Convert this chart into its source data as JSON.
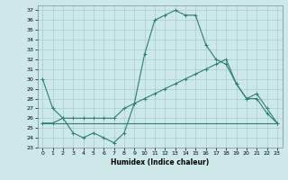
{
  "xlabel": "Humidex (Indice chaleur)",
  "bg_color": "#cce8e8",
  "grid_color": "#aacccc",
  "line_color": "#2e7d6e",
  "xlim": [
    -0.5,
    23.5
  ],
  "ylim": [
    23,
    37.5
  ],
  "xticks": [
    0,
    1,
    2,
    3,
    4,
    5,
    6,
    7,
    8,
    9,
    10,
    11,
    12,
    13,
    14,
    15,
    16,
    17,
    18,
    19,
    20,
    21,
    22,
    23
  ],
  "yticks": [
    23,
    24,
    25,
    26,
    27,
    28,
    29,
    30,
    31,
    32,
    33,
    34,
    35,
    36,
    37
  ],
  "line1_x": [
    0,
    1,
    2,
    3,
    4,
    5,
    6,
    7,
    8,
    9,
    10,
    11,
    12,
    13,
    14,
    15,
    16,
    17,
    18,
    19,
    20,
    21,
    22,
    23
  ],
  "line1_y": [
    30,
    27,
    26,
    24.5,
    24,
    24.5,
    24,
    23.5,
    24.5,
    27.5,
    32.5,
    36,
    36.5,
    37,
    36.5,
    36.5,
    33.5,
    32,
    31.5,
    29.5,
    28,
    28.5,
    27,
    25.5
  ],
  "line2_x": [
    0,
    1,
    2,
    3,
    4,
    5,
    6,
    7,
    8,
    9,
    10,
    11,
    12,
    13,
    14,
    15,
    16,
    17,
    18,
    19,
    20,
    21,
    22,
    23
  ],
  "line2_y": [
    25.5,
    25.5,
    26,
    26,
    26,
    26,
    26,
    26,
    27,
    27.5,
    28,
    28.5,
    29,
    29.5,
    30,
    30.5,
    31,
    31.5,
    32,
    29.5,
    28,
    28,
    26.5,
    25.5
  ],
  "line3_x": [
    0,
    23
  ],
  "line3_y": [
    25.5,
    25.5
  ],
  "marker": "+",
  "markersize": 3,
  "linewidth": 0.8
}
